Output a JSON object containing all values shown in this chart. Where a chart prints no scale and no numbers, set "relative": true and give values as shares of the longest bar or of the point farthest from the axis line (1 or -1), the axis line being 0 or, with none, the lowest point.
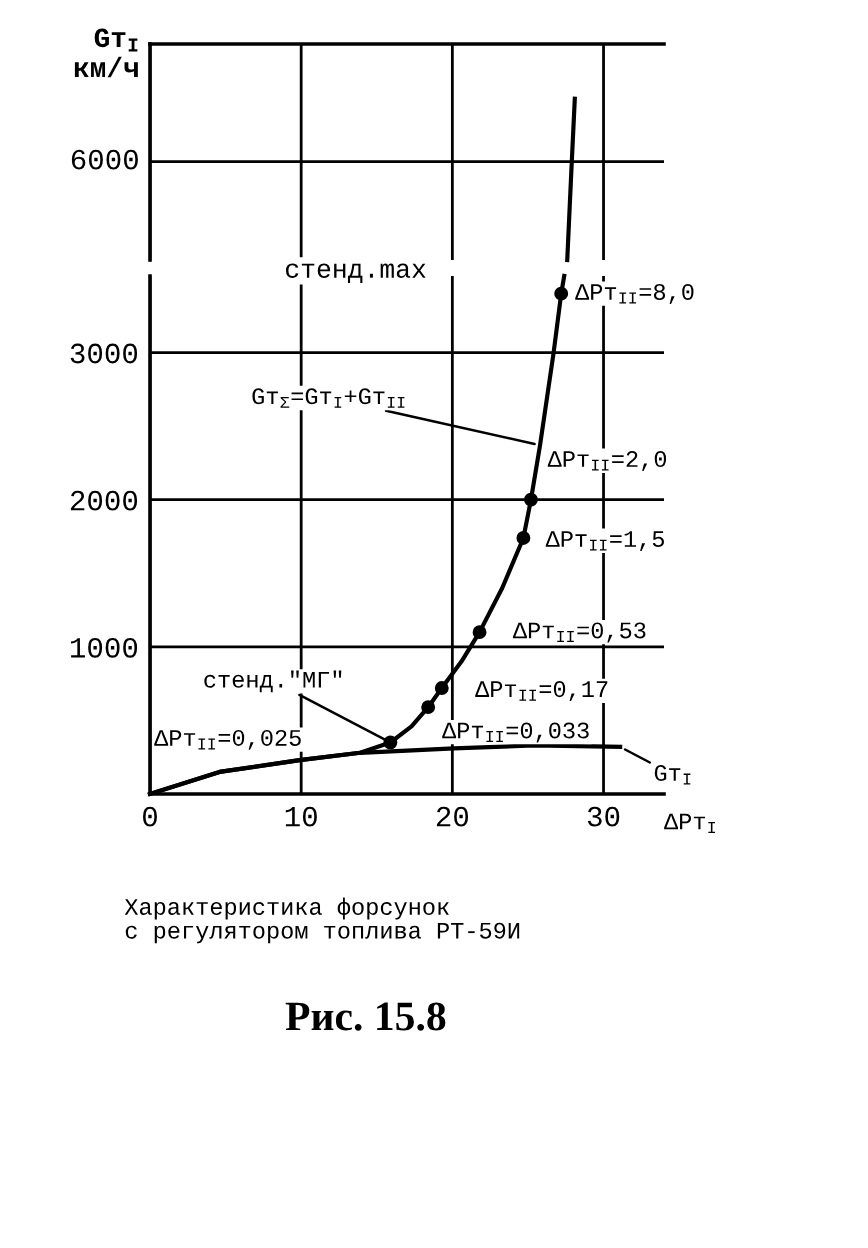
{
  "chart_data": [
    {
      "type": "line",
      "ylabel": "Gт$_{I}$\nкм/ч",
      "relative": true,
      "xlim": [
        0,
        34
      ],
      "xticks": [
        0,
        10,
        20,
        30
      ],
      "tick_labels": false,
      "grid": "x",
      "marker": "none",
      "line_style": "solid",
      "ref_lines": [
        {
          "axis": "y",
          "value": 0.61,
          "color": "#000000"
        }
      ],
      "annotations": [
        "6000"
      ],
      "series": [
        {
          "color": "#000000",
          "x": [
            27.6,
            27.9,
            28.1
          ],
          "values": [
            0,
            0.61,
            1
          ]
        }
      ]
    },
    {
      "type": "line",
      "xlabel": "ΔPт$_{I}$",
      "xlim": [
        0,
        34
      ],
      "ylim": [
        0,
        3520
      ],
      "xticks": [
        0,
        10,
        20,
        30
      ],
      "yticks": [
        1000,
        2000,
        3000
      ],
      "grid": true,
      "marker": "none",
      "line_style": "solid",
      "series": [
        {
          "color": "#000000",
          "x": [
            0,
            4.6,
            9.9,
            13.9,
            15.9,
            17.3,
            18.4,
            19.3,
            20.6,
            21.8,
            23.3,
            24.7,
            25.2,
            25.8,
            26.7,
            27.2,
            27.4
          ],
          "values": [
            0,
            150,
            230,
            280,
            350,
            460,
            590,
            720,
            900,
            1100,
            1400,
            1740,
            2000,
            2370,
            3000,
            3400,
            3520
          ]
        },
        {
          "color": "#000000",
          "x": [
            0,
            4.6,
            9.9,
            13.9,
            20.1,
            25.4,
            31.1
          ],
          "values": [
            0,
            150,
            230,
            280,
            310,
            330,
            320
          ]
        },
        {
          "type": "scatter",
          "color": "#000000",
          "marker": "circle",
          "x": [
            15.9,
            18.4,
            19.3,
            21.8,
            24.7,
            25.2,
            27.2
          ],
          "values": [
            350,
            590,
            720,
            1100,
            1740,
            2000,
            3400
          ]
        }
      ],
      "annotations": [
        "ΔPт$_{II}$=0,025",
        {
          "text": "ΔPт$_{II}$=0,033",
          "x": 18.4,
          "y": 590
        },
        {
          "text": "ΔPт$_{II}$=0,17",
          "x": 19.3,
          "y": 720
        },
        {
          "text": "ΔPт$_{II}$=0,53",
          "x": 21.8,
          "y": 1100
        },
        {
          "text": "ΔPт$_{II}$=1,5",
          "x": 24.7,
          "y": 1740
        },
        {
          "text": "ΔPт$_{II}$=2,0",
          "x": 25.2,
          "y": 2000
        },
        {
          "text": "ΔPт$_{II}$=8,0",
          "x": 27.2,
          "y": 3400
        },
        "стенд.max",
        {
          "text": "Gт$_{Σ}$=Gт$_{I}$+Gт$_{II}$",
          "x": 25.8,
          "y": 2370
        },
        {
          "text": "стенд.\"МГ\"",
          "x": 15.9,
          "y": 350
        },
        {
          "text": "Gт$_{I}$",
          "x": 31.1,
          "y": 320
        },
        "Характеристика форсунок\nс регулятором топлива РТ-59И",
        "Рис. 15.8"
      ]
    }
  ]
}
